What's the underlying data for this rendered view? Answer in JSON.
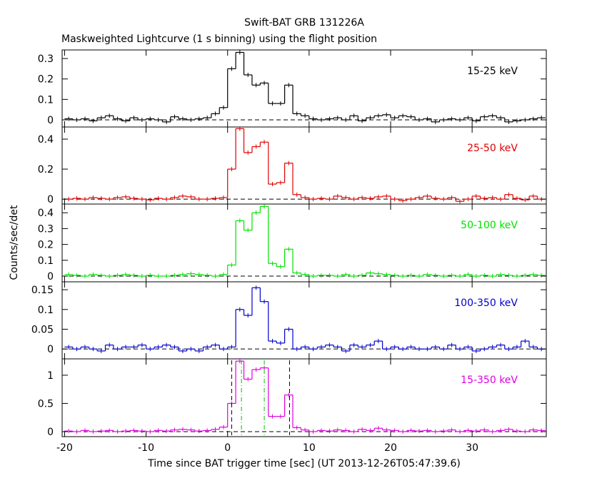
{
  "chart_data": {
    "type": "line",
    "drawstyle": "steps",
    "title": "Swift-BAT GRB 131226A",
    "subtitle": "Maskweighted Lightcurve (1 s binning) using the flight position",
    "xlabel": "Time since BAT trigger time [sec] (UT 2013-12-26T05:47:39.6)",
    "ylabel": "Counts/sec/det",
    "xlim": [
      -20.3,
      39.1
    ],
    "xticks": [
      -20,
      -10,
      0,
      10,
      20,
      30
    ],
    "x": [
      -19.5,
      -18.5,
      -17.5,
      -16.5,
      -15.5,
      -14.5,
      -13.5,
      -12.5,
      -11.5,
      -10.5,
      -9.5,
      -8.5,
      -7.5,
      -6.5,
      -5.5,
      -4.5,
      -3.5,
      -2.5,
      -1.5,
      -0.5,
      0.5,
      1.5,
      2.5,
      3.5,
      4.5,
      5.5,
      6.5,
      7.5,
      8.5,
      9.5,
      10.5,
      11.5,
      12.5,
      13.5,
      14.5,
      15.5,
      16.5,
      17.5,
      18.5,
      19.5,
      20.5,
      21.5,
      22.5,
      23.5,
      24.5,
      25.5,
      26.5,
      27.5,
      28.5,
      29.5,
      30.5,
      31.5,
      32.5,
      33.5,
      34.5,
      35.5,
      36.5,
      37.5,
      38.5
    ],
    "series": [
      {
        "name": "15-25 keV",
        "color": "#000000",
        "ylim": [
          -0.035,
          0.342
        ],
        "yticks": [
          0,
          0.1,
          0.2,
          0.3
        ],
        "values": [
          0.005,
          0.0,
          0.005,
          -0.005,
          0.01,
          0.02,
          0.005,
          -0.005,
          0.01,
          0.0,
          0.005,
          0.0,
          -0.01,
          0.015,
          0.005,
          0.0,
          0.005,
          0.01,
          0.03,
          0.06,
          0.25,
          0.33,
          0.22,
          0.17,
          0.18,
          0.08,
          0.08,
          0.17,
          0.03,
          0.02,
          0.005,
          0.0,
          0.005,
          0.01,
          0.0,
          0.02,
          -0.005,
          0.01,
          0.02,
          0.025,
          0.01,
          0.02,
          0.015,
          0.0,
          0.005,
          -0.01,
          0.0,
          0.005,
          0.0,
          0.01,
          -0.005,
          0.015,
          0.02,
          0.01,
          -0.01,
          -0.005,
          0.0,
          0.005,
          0.01
        ]
      },
      {
        "name": "25-50 keV",
        "color": "#e00000",
        "ylim": [
          -0.033,
          0.481
        ],
        "yticks": [
          0,
          0.2,
          0.4
        ],
        "values": [
          0.0,
          0.005,
          0.0,
          0.01,
          0.005,
          0.0,
          0.01,
          0.015,
          0.005,
          0.0,
          -0.005,
          0.005,
          0.0,
          0.01,
          0.02,
          0.015,
          0.0,
          0.0,
          0.005,
          0.01,
          0.2,
          0.47,
          0.31,
          0.35,
          0.38,
          0.1,
          0.11,
          0.24,
          0.03,
          0.01,
          0.0,
          0.005,
          0.0,
          0.02,
          0.01,
          0.0,
          0.01,
          0.005,
          0.015,
          0.02,
          0.0,
          -0.01,
          0.0,
          0.01,
          0.02,
          0.005,
          0.0,
          0.01,
          -0.015,
          0.0,
          0.02,
          0.005,
          0.01,
          0.0,
          0.03,
          0.005,
          -0.005,
          0.02,
          0.0
        ]
      },
      {
        "name": "50-100 keV",
        "color": "#00e000",
        "ylim": [
          -0.036,
          0.455
        ],
        "yticks": [
          0,
          0.1,
          0.2,
          0.3,
          0.4
        ],
        "values": [
          0.01,
          0.005,
          0.0,
          0.01,
          0.005,
          0.0,
          0.005,
          0.01,
          0.005,
          0.0,
          0.005,
          0.0,
          0.0,
          0.005,
          0.01,
          0.015,
          0.01,
          0.005,
          0.0,
          0.01,
          0.07,
          0.35,
          0.29,
          0.4,
          0.44,
          0.08,
          0.06,
          0.17,
          0.02,
          0.01,
          0.0,
          0.005,
          0.005,
          0.0,
          0.01,
          0.0,
          0.005,
          0.02,
          0.015,
          0.01,
          0.005,
          0.0,
          0.005,
          0.0,
          0.01,
          0.005,
          0.0,
          0.005,
          0.0,
          0.01,
          0.0,
          0.005,
          0.0,
          0.01,
          0.005,
          0.0,
          0.005,
          0.01,
          0.005
        ]
      },
      {
        "name": "100-350 keV",
        "color": "#0000cc",
        "ylim": [
          -0.025,
          0.17
        ],
        "yticks": [
          0,
          0.05,
          0.1,
          0.15
        ],
        "values": [
          0.005,
          0.0,
          0.005,
          0.0,
          -0.005,
          0.01,
          0.0,
          0.005,
          0.005,
          0.01,
          0.0,
          0.005,
          0.01,
          0.005,
          -0.005,
          0.0,
          -0.005,
          0.005,
          0.01,
          0.0,
          0.005,
          0.1,
          0.085,
          0.155,
          0.12,
          0.02,
          0.015,
          0.05,
          0.0,
          0.005,
          0.0,
          0.005,
          0.01,
          0.005,
          -0.005,
          0.01,
          0.005,
          0.01,
          0.02,
          0.0,
          0.005,
          0.0,
          0.005,
          0.0,
          0.0,
          0.005,
          0.0,
          0.01,
          0.0,
          0.005,
          -0.005,
          0.0,
          0.005,
          0.01,
          0.0,
          0.005,
          0.02,
          0.005,
          0.0
        ]
      },
      {
        "name": "15-350 keV",
        "color": "#e000e0",
        "ylim": [
          -0.089,
          1.29
        ],
        "yticks": [
          0,
          0.5,
          1
        ],
        "vlines": [
          {
            "value": 0.5,
            "color": "#000000",
            "dash": "6,4"
          },
          {
            "value": 7.6,
            "color": "#000000",
            "dash": "6,4"
          },
          {
            "value": 1.7,
            "color": "#00c000",
            "dash": "6,3,1,3"
          },
          {
            "value": 4.5,
            "color": "#00c000",
            "dash": "6,3,1,3"
          }
        ],
        "values": [
          0.01,
          0.0,
          0.02,
          0.0,
          0.01,
          0.02,
          0.0,
          0.01,
          0.02,
          0.01,
          0.0,
          0.02,
          0.01,
          0.03,
          0.04,
          0.03,
          0.01,
          0.02,
          0.04,
          0.08,
          0.5,
          1.25,
          0.93,
          1.1,
          1.13,
          0.27,
          0.27,
          0.65,
          0.07,
          0.03,
          0.0,
          0.02,
          0.01,
          0.03,
          0.02,
          0.0,
          0.04,
          0.02,
          0.06,
          0.03,
          0.02,
          0.0,
          0.02,
          0.01,
          0.02,
          0.0,
          0.01,
          0.03,
          0.0,
          0.02,
          0.01,
          0.03,
          0.0,
          0.02,
          0.04,
          0.01,
          0.0,
          0.03,
          0.02
        ]
      }
    ]
  }
}
